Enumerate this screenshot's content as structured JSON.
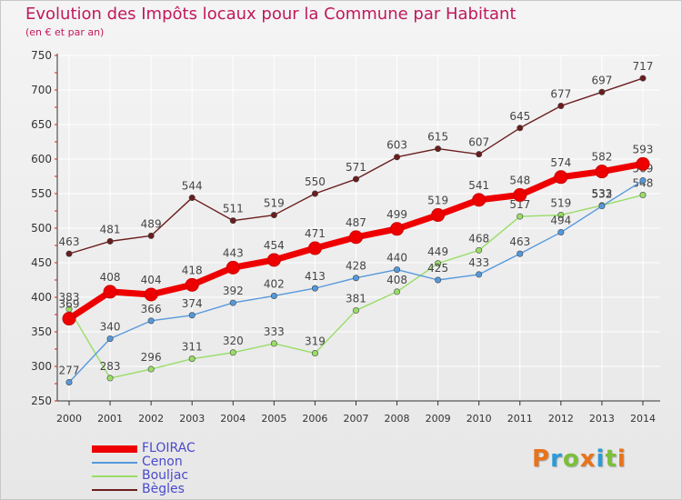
{
  "header": {
    "title": "Evolution des Impôts locaux pour la Commune par Habitant",
    "subtitle": "(en € et par an)"
  },
  "brand": {
    "text": "Proxiti"
  },
  "colors": {
    "axis": "#333333",
    "tick_label": "#333333",
    "grid": "#ffffff",
    "point_label": "#444444"
  },
  "chart_data": {
    "type": "line",
    "title": "Evolution des Impôts locaux pour la Commune par Habitant",
    "subtitle": "(en € et par an)",
    "xlabel": "",
    "ylabel": "",
    "ylim": [
      250,
      750
    ],
    "yticks": [
      250,
      300,
      350,
      400,
      450,
      500,
      550,
      600,
      650,
      700,
      750
    ],
    "grid": true,
    "legend_position": "bottom-left",
    "x": [
      "2000",
      "2001",
      "2002",
      "2003",
      "2004",
      "2005",
      "2006",
      "2007",
      "2008",
      "2009",
      "2010",
      "2011",
      "2012",
      "2013",
      "2014"
    ],
    "series": [
      {
        "name": "Bègles",
        "color": "#6b1d1d",
        "values": [
          463,
          481,
          489,
          544,
          511,
          519,
          550,
          571,
          603,
          615,
          607,
          645,
          677,
          697,
          717
        ]
      },
      {
        "name": "Bouljac",
        "color": "#99dd66",
        "values": [
          383,
          283,
          296,
          311,
          320,
          333,
          319,
          381,
          408,
          449,
          468,
          517,
          519,
          533,
          548
        ]
      },
      {
        "name": "Cenon",
        "color": "#5599dd",
        "values": [
          277,
          340,
          366,
          374,
          392,
          402,
          413,
          428,
          440,
          425,
          433,
          463,
          494,
          532,
          569
        ]
      },
      {
        "name": "FLOIRAC",
        "color": "#ee0000",
        "values": [
          369,
          408,
          404,
          418,
          443,
          454,
          471,
          487,
          499,
          519,
          541,
          548,
          574,
          582,
          593
        ]
      }
    ]
  }
}
